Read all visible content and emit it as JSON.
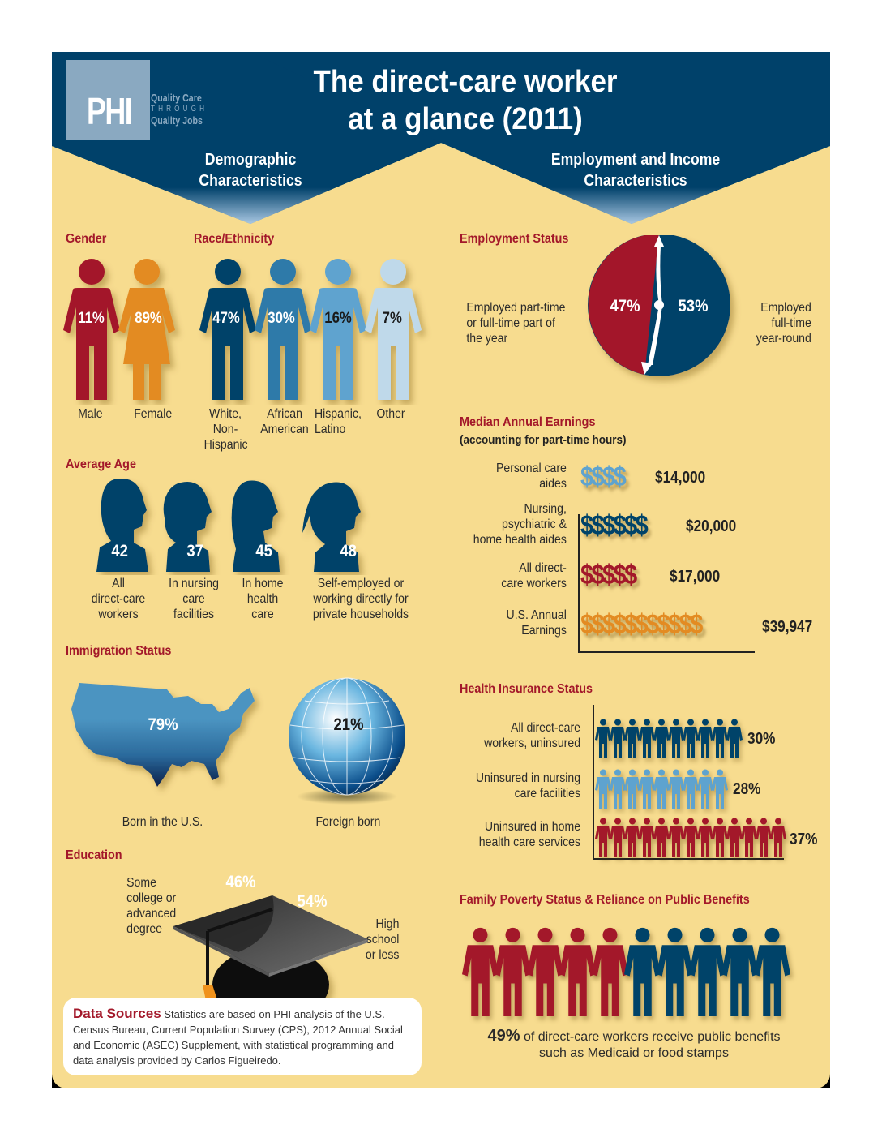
{
  "header": {
    "logo": {
      "mark": "PHI",
      "tagline_1": "Quality Care",
      "tagline_2": "THROUGH",
      "tagline_3": "Quality Jobs"
    },
    "title_line1": "The direct-care worker",
    "title_line2": "at a glance (2011)",
    "left_column": {
      "line1": "Demographic",
      "line2": "Characteristics"
    },
    "right_column": {
      "line1": "Employment and Income",
      "line2": "Characteristics"
    }
  },
  "colors": {
    "navy": "#004369",
    "header_navy": "#00416a",
    "red": "#a3182a",
    "orange": "#e38b22",
    "blue_mid": "#2e7aa9",
    "blue_light": "#5ea3cf",
    "blue_pale": "#bfd9ea",
    "background": "#f7dc8f"
  },
  "gender": {
    "title": "Gender",
    "items": [
      {
        "label": "Male",
        "value": "11%",
        "color": "#a3182a"
      },
      {
        "label": "Female",
        "value": "89%",
        "color": "#e38b22"
      }
    ]
  },
  "race": {
    "title": "Race/Ethnicity",
    "items": [
      {
        "label_1": "White,",
        "label_2": "Non-",
        "label_3": "Hispanic",
        "value": "47%",
        "color": "#004369"
      },
      {
        "label_1": "African",
        "label_2": "American",
        "value": "30%",
        "color": "#2e7aa9"
      },
      {
        "label_1": "Hispanic,",
        "label_2": "Latino",
        "value": "16%",
        "color": "#5ea3cf"
      },
      {
        "label_1": "Other",
        "value": "7%",
        "color": "#bfd9ea"
      }
    ]
  },
  "age": {
    "title": "Average Age",
    "items": [
      {
        "value": "42",
        "label_1": "All",
        "label_2": "direct-care",
        "label_3": "workers"
      },
      {
        "value": "37",
        "label_1": "In nursing",
        "label_2": "care",
        "label_3": "facilities"
      },
      {
        "value": "45",
        "label_1": "In home",
        "label_2": "health",
        "label_3": "care"
      },
      {
        "value": "48",
        "label_1": "Self-employed or",
        "label_2": "working directly for",
        "label_3": "private households"
      }
    ]
  },
  "immigration": {
    "title": "Immigration Status",
    "born_us": {
      "value": "79%",
      "label": "Born in the U.S."
    },
    "foreign": {
      "value": "21%",
      "label": "Foreign born"
    }
  },
  "education": {
    "title": "Education",
    "college": {
      "value": "46%",
      "label_1": "Some",
      "label_2": "college or",
      "label_3": "advanced",
      "label_4": "degree"
    },
    "highschool": {
      "value": "54%",
      "label_1": "High",
      "label_2": "school",
      "label_3": "or less"
    }
  },
  "sources": {
    "heading": "Data Sources",
    "text": "Statistics are based on PHI analysis of the U.S. Census Bureau, Current Population Survey (CPS), 2012 Annual Social and Economic (ASEC) Supplement, with statistical programming and data analysis provided by Carlos Figueiredo."
  },
  "employment": {
    "title": "Employment Status",
    "part": {
      "value": "47%",
      "label_1": "Employed part-time",
      "label_2": "or full-time part of",
      "label_3": "the year"
    },
    "full": {
      "value": "53%",
      "label_1": "Employed",
      "label_2": "full-time",
      "label_3": "year-round"
    }
  },
  "earnings": {
    "title": "Median Annual Earnings",
    "subtitle": "(accounting for part-time hours)",
    "rows": [
      {
        "label_1": "Personal care",
        "label_2": "aides",
        "symbols": "$$$$",
        "value": "$14,000",
        "color": "#5ea3cf"
      },
      {
        "label_1": "Nursing,",
        "label_2": "psychiatric &",
        "label_3": "home health aides",
        "symbols": "$$$$$$",
        "value": "$20,000",
        "color": "#004369"
      },
      {
        "label_1": "All direct-",
        "label_2": "care workers",
        "symbols": "$$$$$",
        "value": "$17,000",
        "color": "#a3182a"
      },
      {
        "label_1": "U.S. Annual",
        "label_2": "Earnings",
        "symbols": "$$$$$$$$$$$",
        "value": "$39,947",
        "color": "#e38b22"
      }
    ]
  },
  "insurance": {
    "title": "Health Insurance Status",
    "rows": [
      {
        "label_1": "All direct-care",
        "label_2": "workers, uninsured",
        "count": 10,
        "value": "30%",
        "color": "#004369"
      },
      {
        "label_1": "Uninsured in nursing",
        "label_2": "care facilities",
        "count": 9,
        "value": "28%",
        "color": "#5ea3cf"
      },
      {
        "label_1": "Uninsured in home",
        "label_2": "health care services",
        "count": 13,
        "value": "37%",
        "color": "#a3182a"
      }
    ]
  },
  "poverty": {
    "title": "Family Poverty Status & Reliance on Public Benefits",
    "red_count": 5,
    "blue_count": 5,
    "value": "49%",
    "text_1": "of direct-care workers receive public benefits",
    "text_2": "such as Medicaid or food stamps"
  },
  "chart_data": [
    {
      "type": "pie",
      "title": "Gender",
      "categories": [
        "Male",
        "Female"
      ],
      "values": [
        11,
        89
      ]
    },
    {
      "type": "pie",
      "title": "Race/Ethnicity",
      "categories": [
        "White, Non-Hispanic",
        "African American",
        "Hispanic, Latino",
        "Other"
      ],
      "values": [
        47,
        30,
        16,
        7
      ]
    },
    {
      "type": "bar",
      "title": "Average Age",
      "categories": [
        "All direct-care workers",
        "In nursing care facilities",
        "In home health care",
        "Self-employed or working directly for private households"
      ],
      "values": [
        42,
        37,
        45,
        48
      ]
    },
    {
      "type": "pie",
      "title": "Immigration Status",
      "categories": [
        "Born in the U.S.",
        "Foreign born"
      ],
      "values": [
        79,
        21
      ]
    },
    {
      "type": "pie",
      "title": "Education",
      "categories": [
        "Some college or advanced degree",
        "High school or less"
      ],
      "values": [
        46,
        54
      ]
    },
    {
      "type": "pie",
      "title": "Employment Status",
      "categories": [
        "Employed part-time or full-time part of the year",
        "Employed full-time year-round"
      ],
      "values": [
        47,
        53
      ]
    },
    {
      "type": "bar",
      "title": "Median Annual Earnings (accounting for part-time hours)",
      "categories": [
        "Personal care aides",
        "Nursing, psychiatric & home health aides",
        "All direct-care workers",
        "U.S. Annual Earnings"
      ],
      "values": [
        14000,
        20000,
        17000,
        39947
      ]
    },
    {
      "type": "bar",
      "title": "Health Insurance Status",
      "categories": [
        "All direct-care workers, uninsured",
        "Uninsured in nursing care facilities",
        "Uninsured in home health care services"
      ],
      "values": [
        30,
        28,
        37
      ]
    },
    {
      "type": "bar",
      "title": "Family Poverty Status & Reliance on Public Benefits",
      "categories": [
        "Receive public benefits"
      ],
      "values": [
        49
      ]
    }
  ]
}
